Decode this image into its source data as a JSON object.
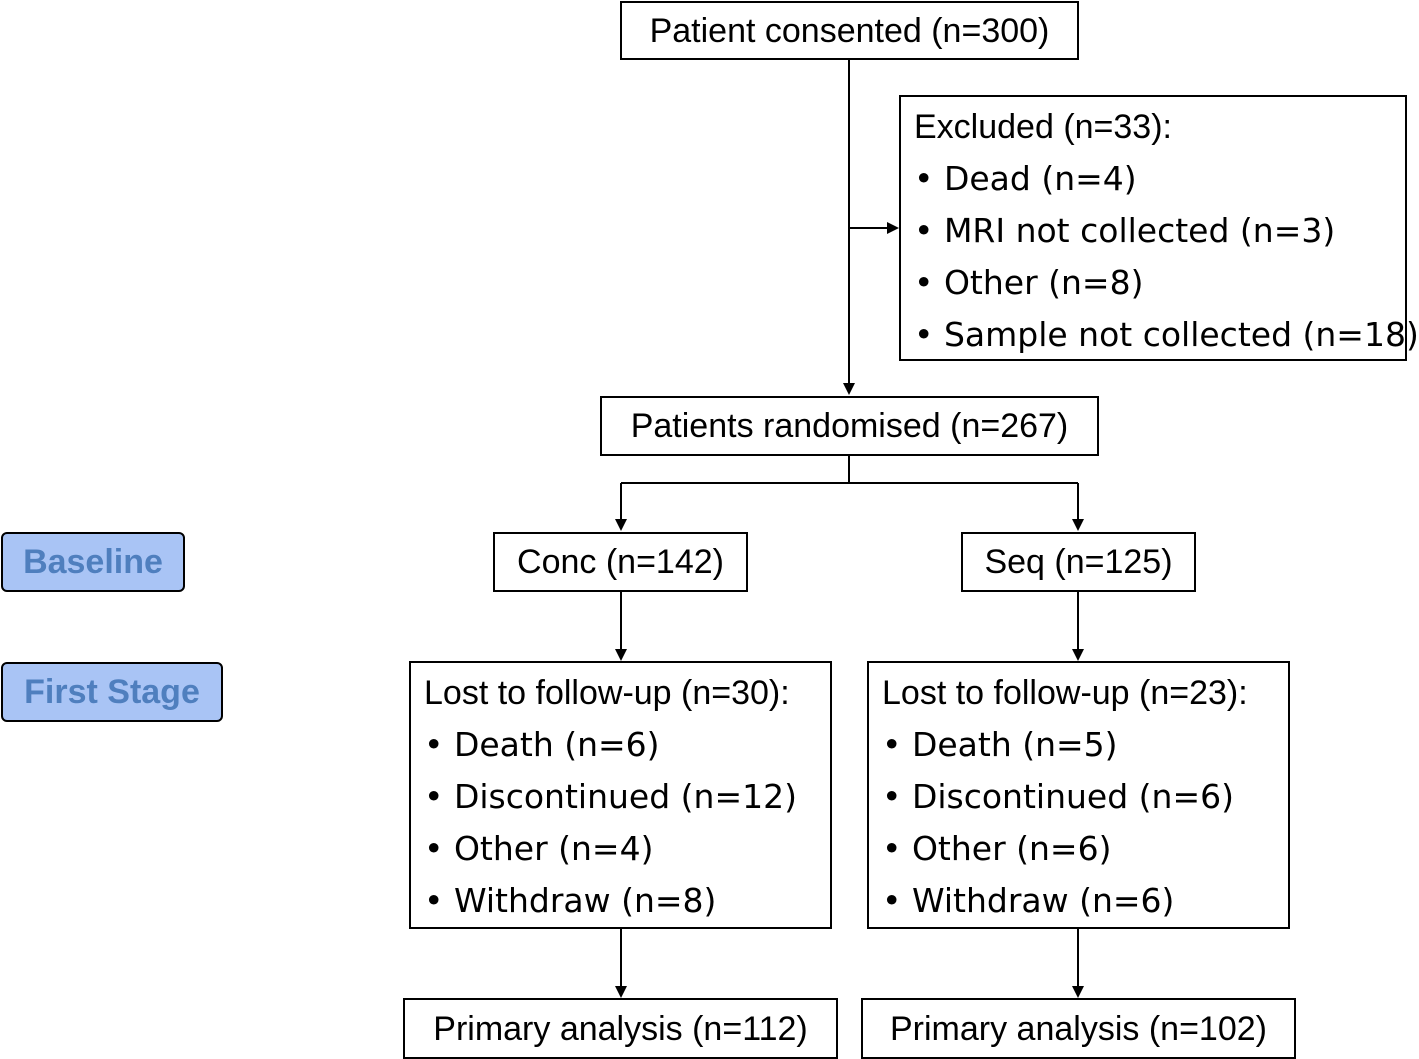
{
  "consented": "Patient consented (n=300)",
  "excluded": {
    "title": "Excluded (n=33):",
    "items": [
      "• Dead (n=4)",
      "• MRI not collected (n=3)",
      "• Other (n=8)",
      "• Sample not collected (n=18)"
    ]
  },
  "randomised": "Patients randomised (n=267)",
  "arms": {
    "conc": {
      "label": "Conc (n=142)",
      "lost_title": "Lost to follow-up (n=30):",
      "lost_items": [
        "• Death (n=6)",
        "• Discontinued (n=12)",
        "• Other (n=4)",
        "• Withdraw (n=8)"
      ],
      "primary": "Primary analysis (n=112)"
    },
    "seq": {
      "label": "Seq (n=125)",
      "lost_title": "Lost to follow-up (n=23):",
      "lost_items": [
        "• Death (n=5)",
        "• Discontinued (n=6)",
        "• Other (n=6)",
        "• Withdraw (n=6)"
      ],
      "primary": "Primary analysis (n=102)"
    }
  },
  "stages": {
    "baseline": "Baseline",
    "first_stage": "First Stage"
  },
  "colors": {
    "stage_fill": "#a9c4f5",
    "stage_text": "#4f7fbe",
    "line": "#000000"
  }
}
